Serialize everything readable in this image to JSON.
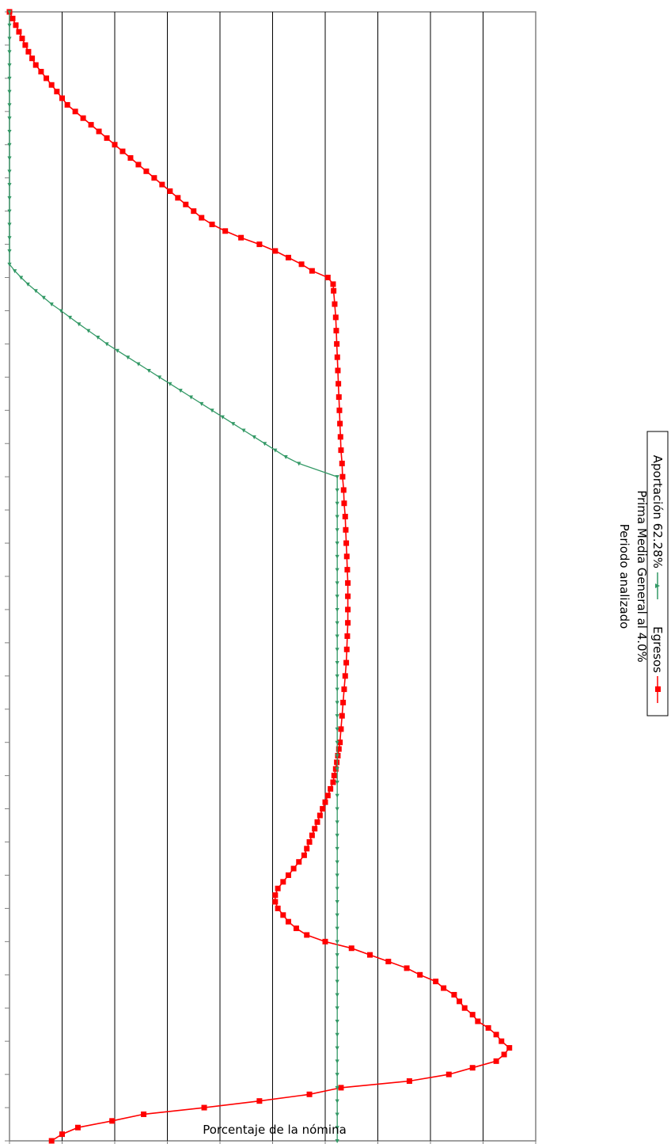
{
  "chart_data": {
    "type": "line",
    "orientation": "rotated-90-clockwise",
    "xlabel": "Periodo analizado",
    "subtitle": "Prima Media General al 4.0%",
    "ylabel": "Porcentaje de la nómina",
    "xlim": [
      2018,
      2188
    ],
    "ylim": [
      0,
      100
    ],
    "x_ticks": [
      "2018",
      "2028",
      "2038",
      "2048",
      "2058",
      "2068",
      "2078",
      "2088",
      "2098",
      "2108",
      "2118",
      "2128",
      "2138",
      "2148",
      "2158",
      "2168",
      "2178",
      "2188"
    ],
    "y_ticks": [
      "0.00",
      "10.00",
      "20.00",
      "30.00",
      "40.00",
      "50.00",
      "60.00",
      "70.00",
      "80.00",
      "90.00",
      "100.00"
    ],
    "grid": true,
    "legend_position": "bottom",
    "series": [
      {
        "name": "Egresos",
        "color": "#ff0000",
        "marker": "square",
        "points": [
          [
            2018,
            8
          ],
          [
            2019,
            10
          ],
          [
            2020,
            13
          ],
          [
            2021,
            19.5
          ],
          [
            2022,
            25.5
          ],
          [
            2023,
            37
          ],
          [
            2024,
            47.5
          ],
          [
            2025,
            57
          ],
          [
            2026,
            63
          ],
          [
            2027,
            76
          ],
          [
            2028,
            83.5
          ],
          [
            2029,
            88
          ],
          [
            2030,
            92.5
          ],
          [
            2031,
            94
          ],
          [
            2032,
            95
          ],
          [
            2033,
            93.5
          ],
          [
            2034,
            92.5
          ],
          [
            2035,
            91
          ],
          [
            2036,
            89
          ],
          [
            2037,
            88
          ],
          [
            2038,
            86.5
          ],
          [
            2039,
            85.5
          ],
          [
            2040,
            84.5
          ],
          [
            2041,
            82.5
          ],
          [
            2042,
            81
          ],
          [
            2043,
            78
          ],
          [
            2044,
            75.5
          ],
          [
            2045,
            72
          ],
          [
            2046,
            68.5
          ],
          [
            2047,
            65
          ],
          [
            2048,
            60
          ],
          [
            2049,
            56.5
          ],
          [
            2050,
            54.5
          ],
          [
            2051,
            53
          ],
          [
            2052,
            52
          ],
          [
            2053,
            51
          ],
          [
            2054,
            50.5
          ],
          [
            2055,
            50.5
          ],
          [
            2056,
            51
          ],
          [
            2057,
            52
          ],
          [
            2058,
            53
          ],
          [
            2059,
            54
          ],
          [
            2060,
            55
          ],
          [
            2061,
            56
          ],
          [
            2062,
            56.5
          ],
          [
            2063,
            57
          ],
          [
            2064,
            57.5
          ],
          [
            2065,
            58
          ],
          [
            2066,
            58.5
          ],
          [
            2067,
            59
          ],
          [
            2068,
            59.5
          ],
          [
            2069,
            60
          ],
          [
            2070,
            60.5
          ],
          [
            2071,
            61
          ],
          [
            2072,
            61.5
          ],
          [
            2073,
            61.7
          ],
          [
            2074,
            62
          ],
          [
            2075,
            62.2
          ],
          [
            2076,
            62.4
          ],
          [
            2077,
            62.6
          ],
          [
            2078,
            62.8
          ],
          [
            2080,
            63
          ],
          [
            2082,
            63.2
          ],
          [
            2084,
            63.4
          ],
          [
            2086,
            63.6
          ],
          [
            2088,
            63.8
          ],
          [
            2090,
            64
          ],
          [
            2092,
            64.1
          ],
          [
            2094,
            64.2
          ],
          [
            2096,
            64.3
          ],
          [
            2098,
            64.3
          ],
          [
            2100,
            64.3
          ],
          [
            2102,
            64.3
          ],
          [
            2104,
            64.2
          ],
          [
            2106,
            64.1
          ],
          [
            2108,
            64
          ],
          [
            2110,
            63.9
          ],
          [
            2112,
            63.8
          ],
          [
            2114,
            63.6
          ],
          [
            2116,
            63.5
          ],
          [
            2118,
            63.3
          ],
          [
            2120,
            63.2
          ],
          [
            2122,
            63
          ],
          [
            2124,
            62.9
          ],
          [
            2126,
            62.8
          ],
          [
            2128,
            62.7
          ],
          [
            2130,
            62.6
          ],
          [
            2132,
            62.5
          ],
          [
            2134,
            62.4
          ],
          [
            2136,
            62.3
          ],
          [
            2138,
            62.2
          ],
          [
            2140,
            62.1
          ],
          [
            2142,
            62
          ],
          [
            2144,
            61.8
          ],
          [
            2146,
            61.6
          ],
          [
            2147,
            61.5
          ],
          [
            2148,
            60.5
          ],
          [
            2149,
            57.5
          ],
          [
            2150,
            55.5
          ],
          [
            2151,
            53
          ],
          [
            2152,
            50.5
          ],
          [
            2153,
            47.5
          ],
          [
            2154,
            44
          ],
          [
            2155,
            41
          ],
          [
            2156,
            38.5
          ],
          [
            2157,
            36.5
          ],
          [
            2158,
            35
          ],
          [
            2159,
            33.5
          ],
          [
            2160,
            32
          ],
          [
            2161,
            30.5
          ],
          [
            2162,
            29
          ],
          [
            2163,
            27.5
          ],
          [
            2164,
            26
          ],
          [
            2165,
            24.5
          ],
          [
            2166,
            23
          ],
          [
            2167,
            21.5
          ],
          [
            2168,
            20
          ],
          [
            2169,
            18.5
          ],
          [
            2170,
            17
          ],
          [
            2171,
            15.5
          ],
          [
            2172,
            14
          ],
          [
            2173,
            12.5
          ],
          [
            2174,
            11
          ],
          [
            2175,
            10
          ],
          [
            2176,
            9
          ],
          [
            2177,
            8
          ],
          [
            2178,
            7
          ],
          [
            2179,
            6
          ],
          [
            2180,
            5
          ],
          [
            2181,
            4.3
          ],
          [
            2182,
            3.6
          ],
          [
            2183,
            3
          ],
          [
            2184,
            2.4
          ],
          [
            2185,
            1.8
          ],
          [
            2186,
            1.2
          ],
          [
            2187,
            0.6
          ],
          [
            2188,
            0
          ]
        ]
      },
      {
        "name": "Aportación 62.28%",
        "color": "#339966",
        "marker": "triangle",
        "points": [
          [
            2018,
            62.28
          ],
          [
            2020,
            62.28
          ],
          [
            2022,
            62.28
          ],
          [
            2024,
            62.28
          ],
          [
            2026,
            62.28
          ],
          [
            2028,
            62.28
          ],
          [
            2030,
            62.28
          ],
          [
            2032,
            62.28
          ],
          [
            2034,
            62.28
          ],
          [
            2036,
            62.28
          ],
          [
            2038,
            62.28
          ],
          [
            2040,
            62.28
          ],
          [
            2042,
            62.28
          ],
          [
            2044,
            62.28
          ],
          [
            2046,
            62.28
          ],
          [
            2048,
            62.28
          ],
          [
            2050,
            62.28
          ],
          [
            2052,
            62.28
          ],
          [
            2054,
            62.28
          ],
          [
            2056,
            62.28
          ],
          [
            2058,
            62.28
          ],
          [
            2060,
            62.28
          ],
          [
            2062,
            62.28
          ],
          [
            2064,
            62.28
          ],
          [
            2066,
            62.28
          ],
          [
            2068,
            62.28
          ],
          [
            2070,
            62.28
          ],
          [
            2072,
            62.28
          ],
          [
            2074,
            62.28
          ],
          [
            2076,
            62.28
          ],
          [
            2078,
            62.28
          ],
          [
            2080,
            62.28
          ],
          [
            2082,
            62.28
          ],
          [
            2084,
            62.28
          ],
          [
            2086,
            62.28
          ],
          [
            2088,
            62.28
          ],
          [
            2090,
            62.28
          ],
          [
            2092,
            62.28
          ],
          [
            2094,
            62.28
          ],
          [
            2096,
            62.28
          ],
          [
            2098,
            62.28
          ],
          [
            2100,
            62.28
          ],
          [
            2102,
            62.28
          ],
          [
            2104,
            62.28
          ],
          [
            2106,
            62.28
          ],
          [
            2108,
            62.28
          ],
          [
            2110,
            62.28
          ],
          [
            2112,
            62.28
          ],
          [
            2114,
            62.28
          ],
          [
            2116,
            62.28
          ],
          [
            2118,
            62.28
          ],
          [
            2120,
            55
          ],
          [
            2121,
            52.5
          ],
          [
            2122,
            50.5
          ],
          [
            2123,
            48.5
          ],
          [
            2124,
            46.5
          ],
          [
            2125,
            44.5
          ],
          [
            2126,
            42.5
          ],
          [
            2127,
            40.5
          ],
          [
            2128,
            38.5
          ],
          [
            2129,
            36.5
          ],
          [
            2130,
            34.5
          ],
          [
            2131,
            32.5
          ],
          [
            2132,
            30.5
          ],
          [
            2133,
            28.5
          ],
          [
            2134,
            26.5
          ],
          [
            2135,
            24.5
          ],
          [
            2136,
            22.5
          ],
          [
            2137,
            20.5
          ],
          [
            2138,
            18.5
          ],
          [
            2139,
            16.8
          ],
          [
            2140,
            15
          ],
          [
            2141,
            13.2
          ],
          [
            2142,
            11.5
          ],
          [
            2143,
            9.8
          ],
          [
            2144,
            8
          ],
          [
            2145,
            6.5
          ],
          [
            2146,
            5
          ],
          [
            2147,
            3.5
          ],
          [
            2148,
            2.2
          ],
          [
            2149,
            1
          ],
          [
            2150,
            0
          ],
          [
            2152,
            0
          ],
          [
            2154,
            0
          ],
          [
            2156,
            0
          ],
          [
            2158,
            0
          ],
          [
            2160,
            0
          ],
          [
            2162,
            0
          ],
          [
            2164,
            0
          ],
          [
            2166,
            0
          ],
          [
            2168,
            0
          ],
          [
            2170,
            0
          ],
          [
            2172,
            0
          ],
          [
            2174,
            0
          ],
          [
            2176,
            0
          ],
          [
            2178,
            0
          ],
          [
            2180,
            0
          ],
          [
            2182,
            0
          ],
          [
            2184,
            0
          ],
          [
            2186,
            0
          ],
          [
            2188,
            0
          ]
        ]
      }
    ]
  }
}
